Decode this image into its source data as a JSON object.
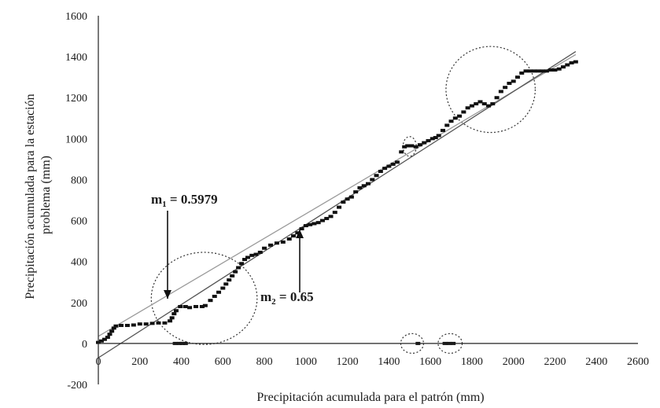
{
  "chart_data": {
    "type": "scatter",
    "xlabel": "Precipitación acumulada para el patrón (mm)",
    "ylabel_line1": "Precipitación acumulada para la estación",
    "ylabel_line2": "problema (mm)",
    "xlim": [
      0,
      2600
    ],
    "ylim": [
      -200,
      1600
    ],
    "x_ticks": [
      0,
      200,
      400,
      600,
      800,
      1000,
      1200,
      1400,
      1600,
      1800,
      2000,
      2200,
      2400,
      2600
    ],
    "y_ticks": [
      -200,
      0,
      200,
      400,
      600,
      800,
      1000,
      1200,
      1400,
      1600
    ],
    "grid": false,
    "series": [
      {
        "color": "#111111",
        "points": [
          [
            0,
            5
          ],
          [
            15,
            12
          ],
          [
            30,
            20
          ],
          [
            45,
            30
          ],
          [
            55,
            45
          ],
          [
            65,
            60
          ],
          [
            75,
            75
          ],
          [
            85,
            85
          ],
          [
            110,
            88
          ],
          [
            140,
            88
          ],
          [
            170,
            90
          ],
          [
            200,
            95
          ],
          [
            230,
            95
          ],
          [
            260,
            98
          ],
          [
            290,
            100
          ],
          [
            320,
            100
          ],
          [
            345,
            110
          ],
          [
            355,
            125
          ],
          [
            365,
            145
          ],
          [
            375,
            160
          ],
          [
            395,
            180
          ],
          [
            420,
            180
          ],
          [
            440,
            175
          ],
          [
            470,
            180
          ],
          [
            500,
            180
          ],
          [
            515,
            185
          ],
          [
            540,
            210
          ],
          [
            560,
            230
          ],
          [
            580,
            250
          ],
          [
            600,
            270
          ],
          [
            615,
            290
          ],
          [
            630,
            310
          ],
          [
            645,
            330
          ],
          [
            660,
            350
          ],
          [
            675,
            370
          ],
          [
            690,
            390
          ],
          [
            705,
            410
          ],
          [
            720,
            420
          ],
          [
            740,
            430
          ],
          [
            760,
            435
          ],
          [
            780,
            445
          ],
          [
            800,
            465
          ],
          [
            830,
            480
          ],
          [
            860,
            490
          ],
          [
            890,
            495
          ],
          [
            920,
            510
          ],
          [
            940,
            525
          ],
          [
            960,
            540
          ],
          [
            980,
            560
          ],
          [
            1000,
            575
          ],
          [
            1020,
            580
          ],
          [
            1040,
            585
          ],
          [
            1060,
            590
          ],
          [
            1080,
            600
          ],
          [
            1100,
            610
          ],
          [
            1120,
            620
          ],
          [
            1140,
            640
          ],
          [
            1160,
            665
          ],
          [
            1180,
            690
          ],
          [
            1200,
            705
          ],
          [
            1220,
            715
          ],
          [
            1240,
            740
          ],
          [
            1260,
            760
          ],
          [
            1280,
            770
          ],
          [
            1300,
            780
          ],
          [
            1320,
            800
          ],
          [
            1340,
            820
          ],
          [
            1360,
            840
          ],
          [
            1380,
            855
          ],
          [
            1400,
            865
          ],
          [
            1420,
            875
          ],
          [
            1440,
            885
          ],
          [
            1460,
            935
          ],
          [
            1475,
            960
          ],
          [
            1490,
            965
          ],
          [
            1510,
            965
          ],
          [
            1530,
            960
          ],
          [
            1550,
            970
          ],
          [
            1570,
            980
          ],
          [
            1590,
            990
          ],
          [
            1610,
            1000
          ],
          [
            1625,
            1005
          ],
          [
            1640,
            1015
          ],
          [
            1660,
            1040
          ],
          [
            1680,
            1065
          ],
          [
            1700,
            1085
          ],
          [
            1720,
            1100
          ],
          [
            1740,
            1110
          ],
          [
            1760,
            1130
          ],
          [
            1780,
            1150
          ],
          [
            1800,
            1160
          ],
          [
            1820,
            1170
          ],
          [
            1840,
            1180
          ],
          [
            1860,
            1170
          ],
          [
            1880,
            1160
          ],
          [
            1900,
            1170
          ],
          [
            1920,
            1200
          ],
          [
            1940,
            1230
          ],
          [
            1960,
            1250
          ],
          [
            1980,
            1270
          ],
          [
            2000,
            1280
          ],
          [
            2020,
            1300
          ],
          [
            2040,
            1320
          ],
          [
            2060,
            1330
          ],
          [
            2080,
            1330
          ],
          [
            2100,
            1330
          ],
          [
            2120,
            1330
          ],
          [
            2140,
            1330
          ],
          [
            2160,
            1330
          ],
          [
            2180,
            1335
          ],
          [
            2200,
            1335
          ],
          [
            2220,
            1340
          ],
          [
            2240,
            1350
          ],
          [
            2260,
            1360
          ],
          [
            2280,
            1370
          ],
          [
            2300,
            1375
          ],
          [
            370,
            0
          ],
          [
            390,
            0
          ],
          [
            405,
            0
          ],
          [
            420,
            0
          ],
          [
            1540,
            0
          ],
          [
            1670,
            0
          ],
          [
            1690,
            0
          ],
          [
            1710,
            0
          ]
        ]
      }
    ],
    "trend_lines": [
      {
        "label": "m1",
        "slope": 0.5979,
        "intercept": 35,
        "color": "#9a9a9a"
      },
      {
        "label": "m2",
        "slope": 0.65,
        "intercept": -70,
        "color": "#555555"
      }
    ],
    "annotations": [
      {
        "main": "m",
        "sub": "1",
        "rest": " = 0.5979"
      },
      {
        "main": "m",
        "sub": "2",
        "rest": " = 0.65"
      }
    ],
    "highlight_ellipses": [
      {
        "cx": 510,
        "cy": 220,
        "rx": 255,
        "ry": 225
      },
      {
        "cx": 1890,
        "cy": 1240,
        "rx": 215,
        "ry": 210
      },
      {
        "cx": 1500,
        "cy": 962,
        "rx": 32,
        "ry": 48
      },
      {
        "cx": 1512,
        "cy": 0,
        "rx": 55,
        "ry": 48
      },
      {
        "cx": 1695,
        "cy": 0,
        "rx": 58,
        "ry": 48
      }
    ]
  }
}
